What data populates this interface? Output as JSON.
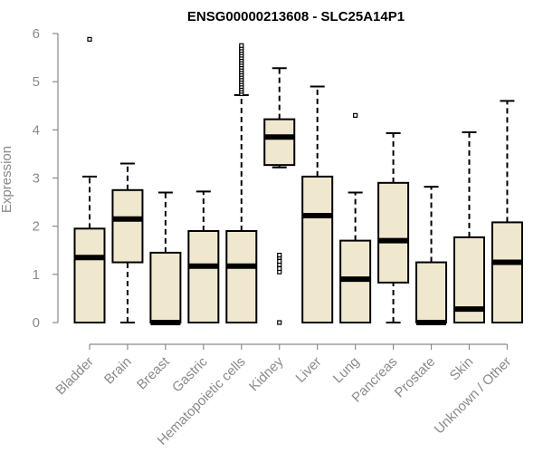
{
  "chart_data": {
    "type": "boxplot",
    "title": "ENSG00000213608 - SLC25A14P1",
    "xlabel": "",
    "ylabel": "Expression",
    "ylim": [
      0,
      6
    ],
    "yticks": [
      0,
      1,
      2,
      3,
      4,
      5,
      6
    ],
    "grid": false,
    "colors": {
      "box_fill": "#efe8cf",
      "stroke": "#000000",
      "axis_text": "#8a8a8a"
    },
    "categories": [
      "Bladder",
      "Brain",
      "Breast",
      "Gastric",
      "Hematopoietic cells",
      "Kidney",
      "Liver",
      "Lung",
      "Pancreas",
      "Prostate",
      "Skin",
      "Unknown / Other"
    ],
    "boxes": [
      {
        "category": "Bladder",
        "min": 0,
        "q1": 0,
        "median": 1.35,
        "q3": 1.95,
        "max": 3.03,
        "outliers": [
          5.88
        ]
      },
      {
        "category": "Brain",
        "min": 0,
        "q1": 1.25,
        "median": 2.15,
        "q3": 2.75,
        "max": 3.3,
        "outliers": []
      },
      {
        "category": "Breast",
        "min": 0,
        "q1": 0,
        "median": 0,
        "q3": 1.45,
        "max": 2.7,
        "outliers": []
      },
      {
        "category": "Gastric",
        "min": 0,
        "q1": 0,
        "median": 1.17,
        "q3": 1.9,
        "max": 2.72,
        "outliers": []
      },
      {
        "category": "Hematopoietic cells",
        "min": 0,
        "q1": 0,
        "median": 1.17,
        "q3": 1.9,
        "max": 4.72,
        "outliers": [
          4.75,
          4.8,
          4.85,
          4.9,
          4.95,
          5.0,
          5.05,
          5.1,
          5.15,
          5.2,
          5.25,
          5.3,
          5.35,
          5.4,
          5.45,
          5.5,
          5.55,
          5.6,
          5.65,
          5.7,
          5.75
        ]
      },
      {
        "category": "Kidney",
        "min": 3.22,
        "q1": 3.27,
        "median": 3.85,
        "q3": 4.22,
        "max": 5.28,
        "outliers": [
          0,
          1.05,
          1.12,
          1.2,
          1.27,
          1.35,
          1.4
        ]
      },
      {
        "category": "Liver",
        "min": 0,
        "q1": 0,
        "median": 2.22,
        "q3": 3.03,
        "max": 4.9,
        "outliers": []
      },
      {
        "category": "Lung",
        "min": 0,
        "q1": 0,
        "median": 0.9,
        "q3": 1.7,
        "max": 2.7,
        "outliers": [
          4.3
        ]
      },
      {
        "category": "Pancreas",
        "min": 0,
        "q1": 0.83,
        "median": 1.7,
        "q3": 2.9,
        "max": 3.93,
        "outliers": []
      },
      {
        "category": "Prostate",
        "min": 0,
        "q1": 0,
        "median": 0,
        "q3": 1.25,
        "max": 2.82,
        "outliers": []
      },
      {
        "category": "Skin",
        "min": 0,
        "q1": 0,
        "median": 0.28,
        "q3": 1.77,
        "max": 3.95,
        "outliers": []
      },
      {
        "category": "Unknown / Other",
        "min": 0,
        "q1": 0,
        "median": 1.25,
        "q3": 2.08,
        "max": 4.6,
        "outliers": []
      }
    ]
  }
}
